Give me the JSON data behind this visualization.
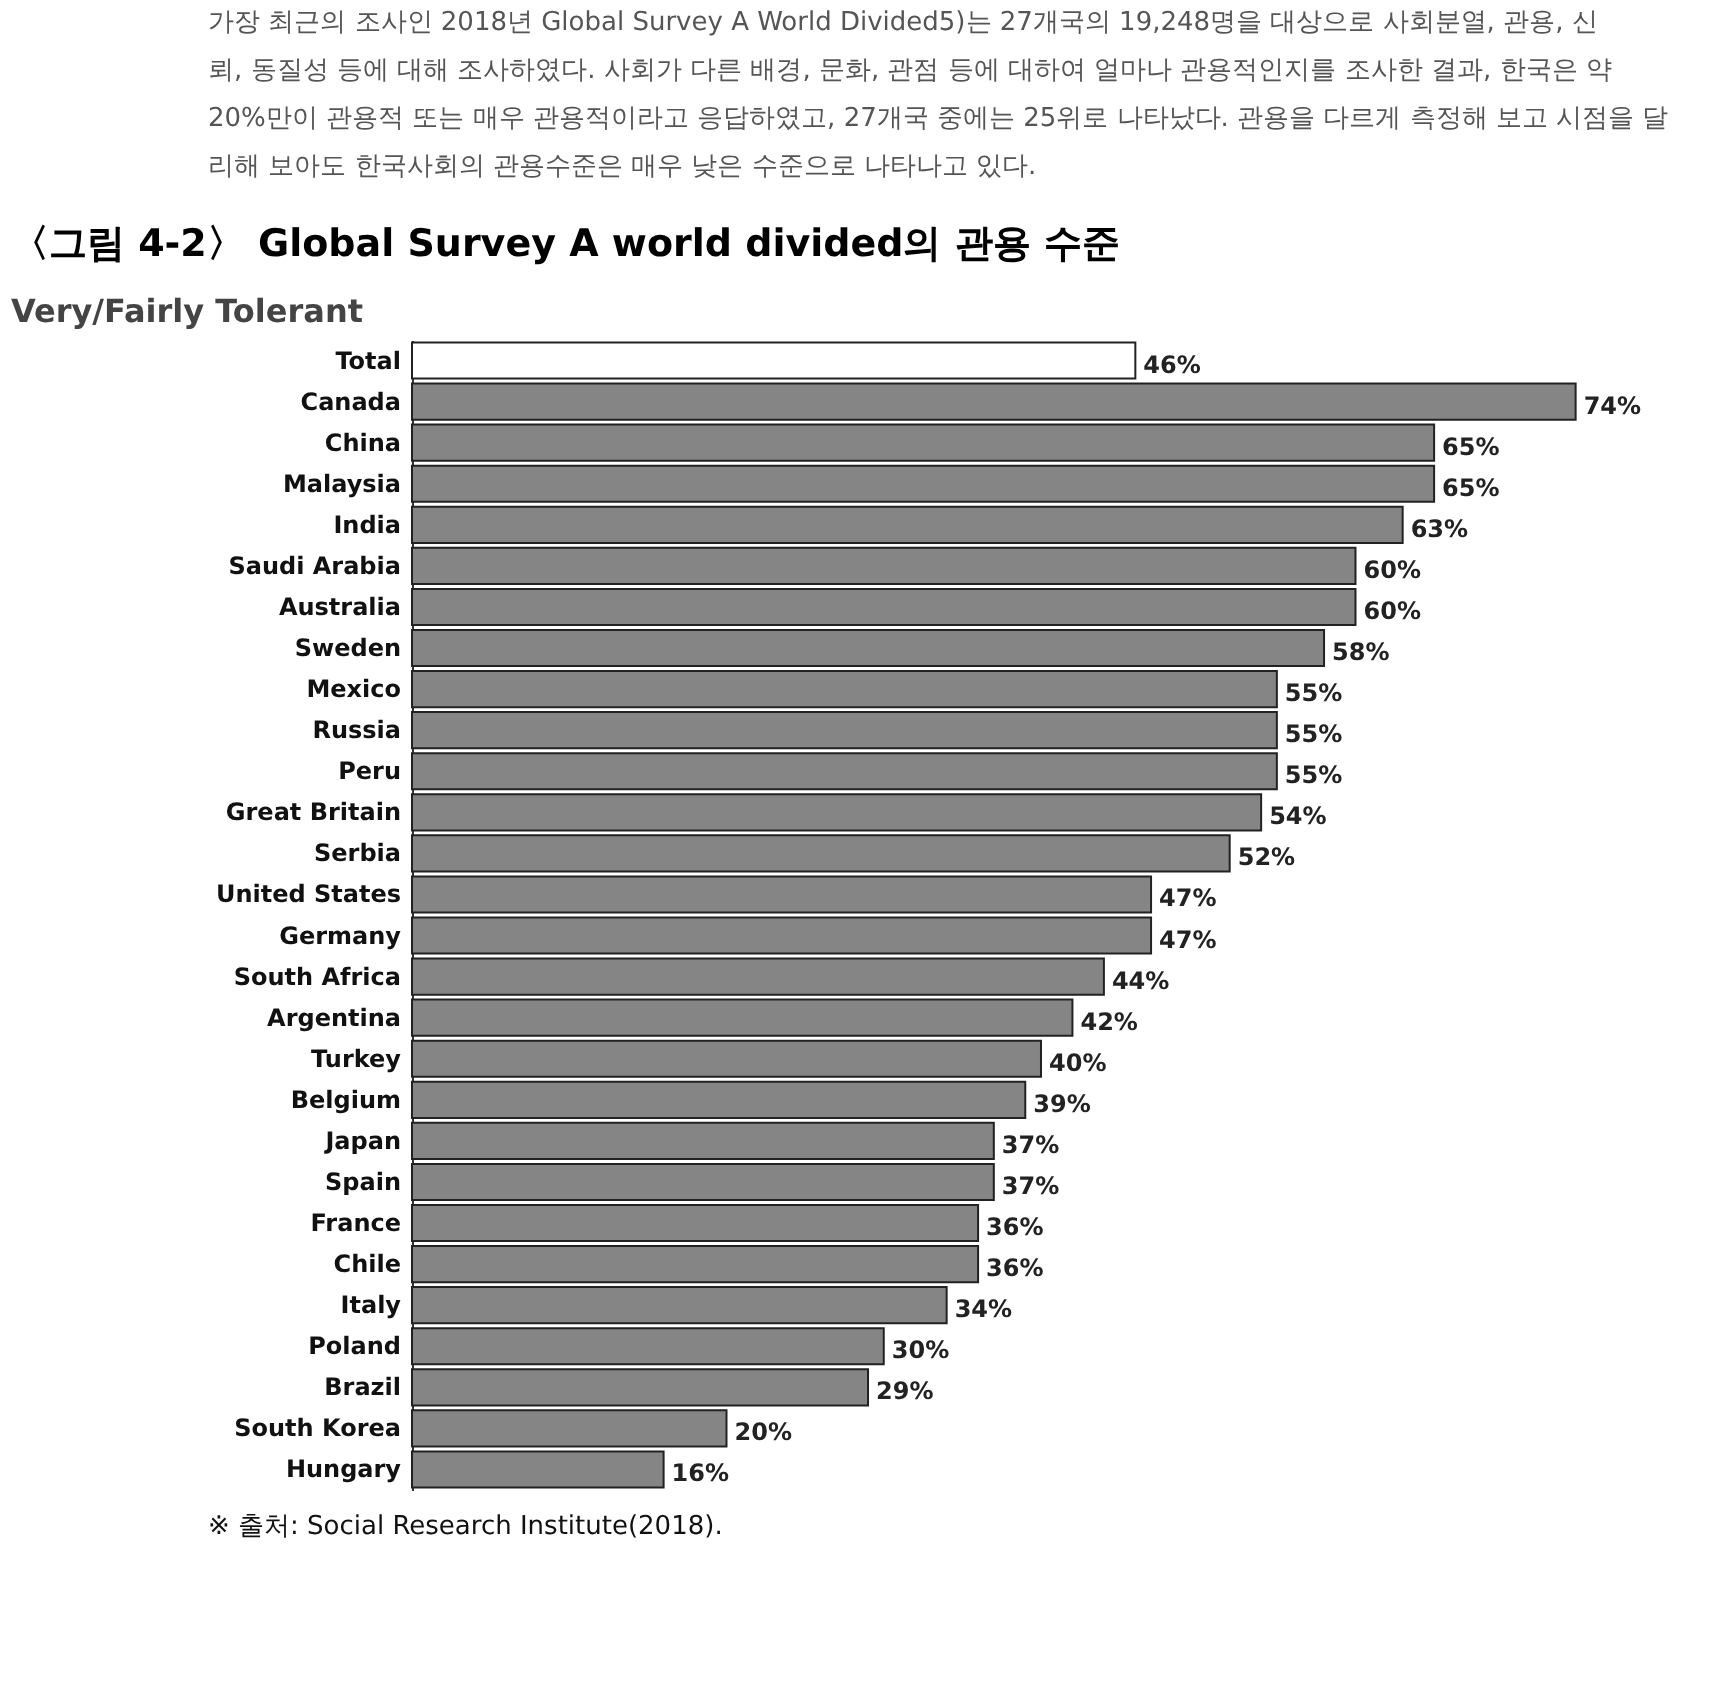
{
  "chart_data": {
    "type": "bar",
    "orientation": "horizontal",
    "title": "〈그림 4-2〉 Global Survey A world divided의 관용 수준",
    "subtitle": "Very/Fairly Tolerant",
    "categories": [
      "Total",
      "Canada",
      "China",
      "Malaysia",
      "India",
      "Saudi Arabia",
      "Australia",
      "Sweden",
      "Mexico",
      "Russia",
      "Peru",
      "Great Britain",
      "Serbia",
      "United States",
      "Germany",
      "South Africa",
      "Argentina",
      "Turkey",
      "Belgium",
      "Japan",
      "Spain",
      "France",
      "Chile",
      "Italy",
      "Poland",
      "Brazil",
      "South Korea",
      "Hungary"
    ],
    "values": [
      46,
      74,
      65,
      65,
      63,
      60,
      60,
      58,
      55,
      55,
      55,
      54,
      52,
      47,
      47,
      44,
      42,
      40,
      39,
      37,
      37,
      36,
      36,
      34,
      30,
      29,
      20,
      16
    ],
    "value_labels": [
      "46%",
      "74%",
      "65%",
      "65%",
      "63%",
      "60%",
      "60%",
      "58%",
      "55%",
      "55%",
      "55%",
      "54%",
      "52%",
      "47%",
      "47%",
      "44%",
      "42%",
      "40%",
      "39%",
      "37%",
      "37%",
      "36%",
      "36%",
      "34%",
      "30%",
      "29%",
      "20%",
      "16%"
    ],
    "colors": [
      "#ffffff",
      "#858585",
      "#858585",
      "#858585",
      "#858585",
      "#858585",
      "#858585",
      "#858585",
      "#858585",
      "#858585",
      "#858585",
      "#858585",
      "#858585",
      "#858585",
      "#858585",
      "#858585",
      "#858585",
      "#858585",
      "#858585",
      "#858585",
      "#858585",
      "#858585",
      "#858585",
      "#858585",
      "#858585",
      "#858585",
      "#858585",
      "#858585"
    ],
    "annotations": [
      "가장 최근의 조사인 2018년 Global Survey A World Divided5)는 27개국의 19,248명을 대상으로 사회분열, 관용, 신",
      "뢰, 동질성 등에 대해 조사하였다. 사회가 다른 배경, 문화, 관점 등에 대하여 얼마나 관용적인지를 조사한 결과, 한국은 약",
      "20%만이 관용적 또는 매우 관용적이라고 응답하였고, 27개국 중에는 25위로 나타났다. 관용을 다르게 측정해 보고 시점을 달",
      "리해 보아도 한국사회의 관용수준은 매우 낮은 수준으로 나타나고 있다.",
      "※ 출처: Social Research Institute(2018)."
    ],
    "grid": false
  }
}
